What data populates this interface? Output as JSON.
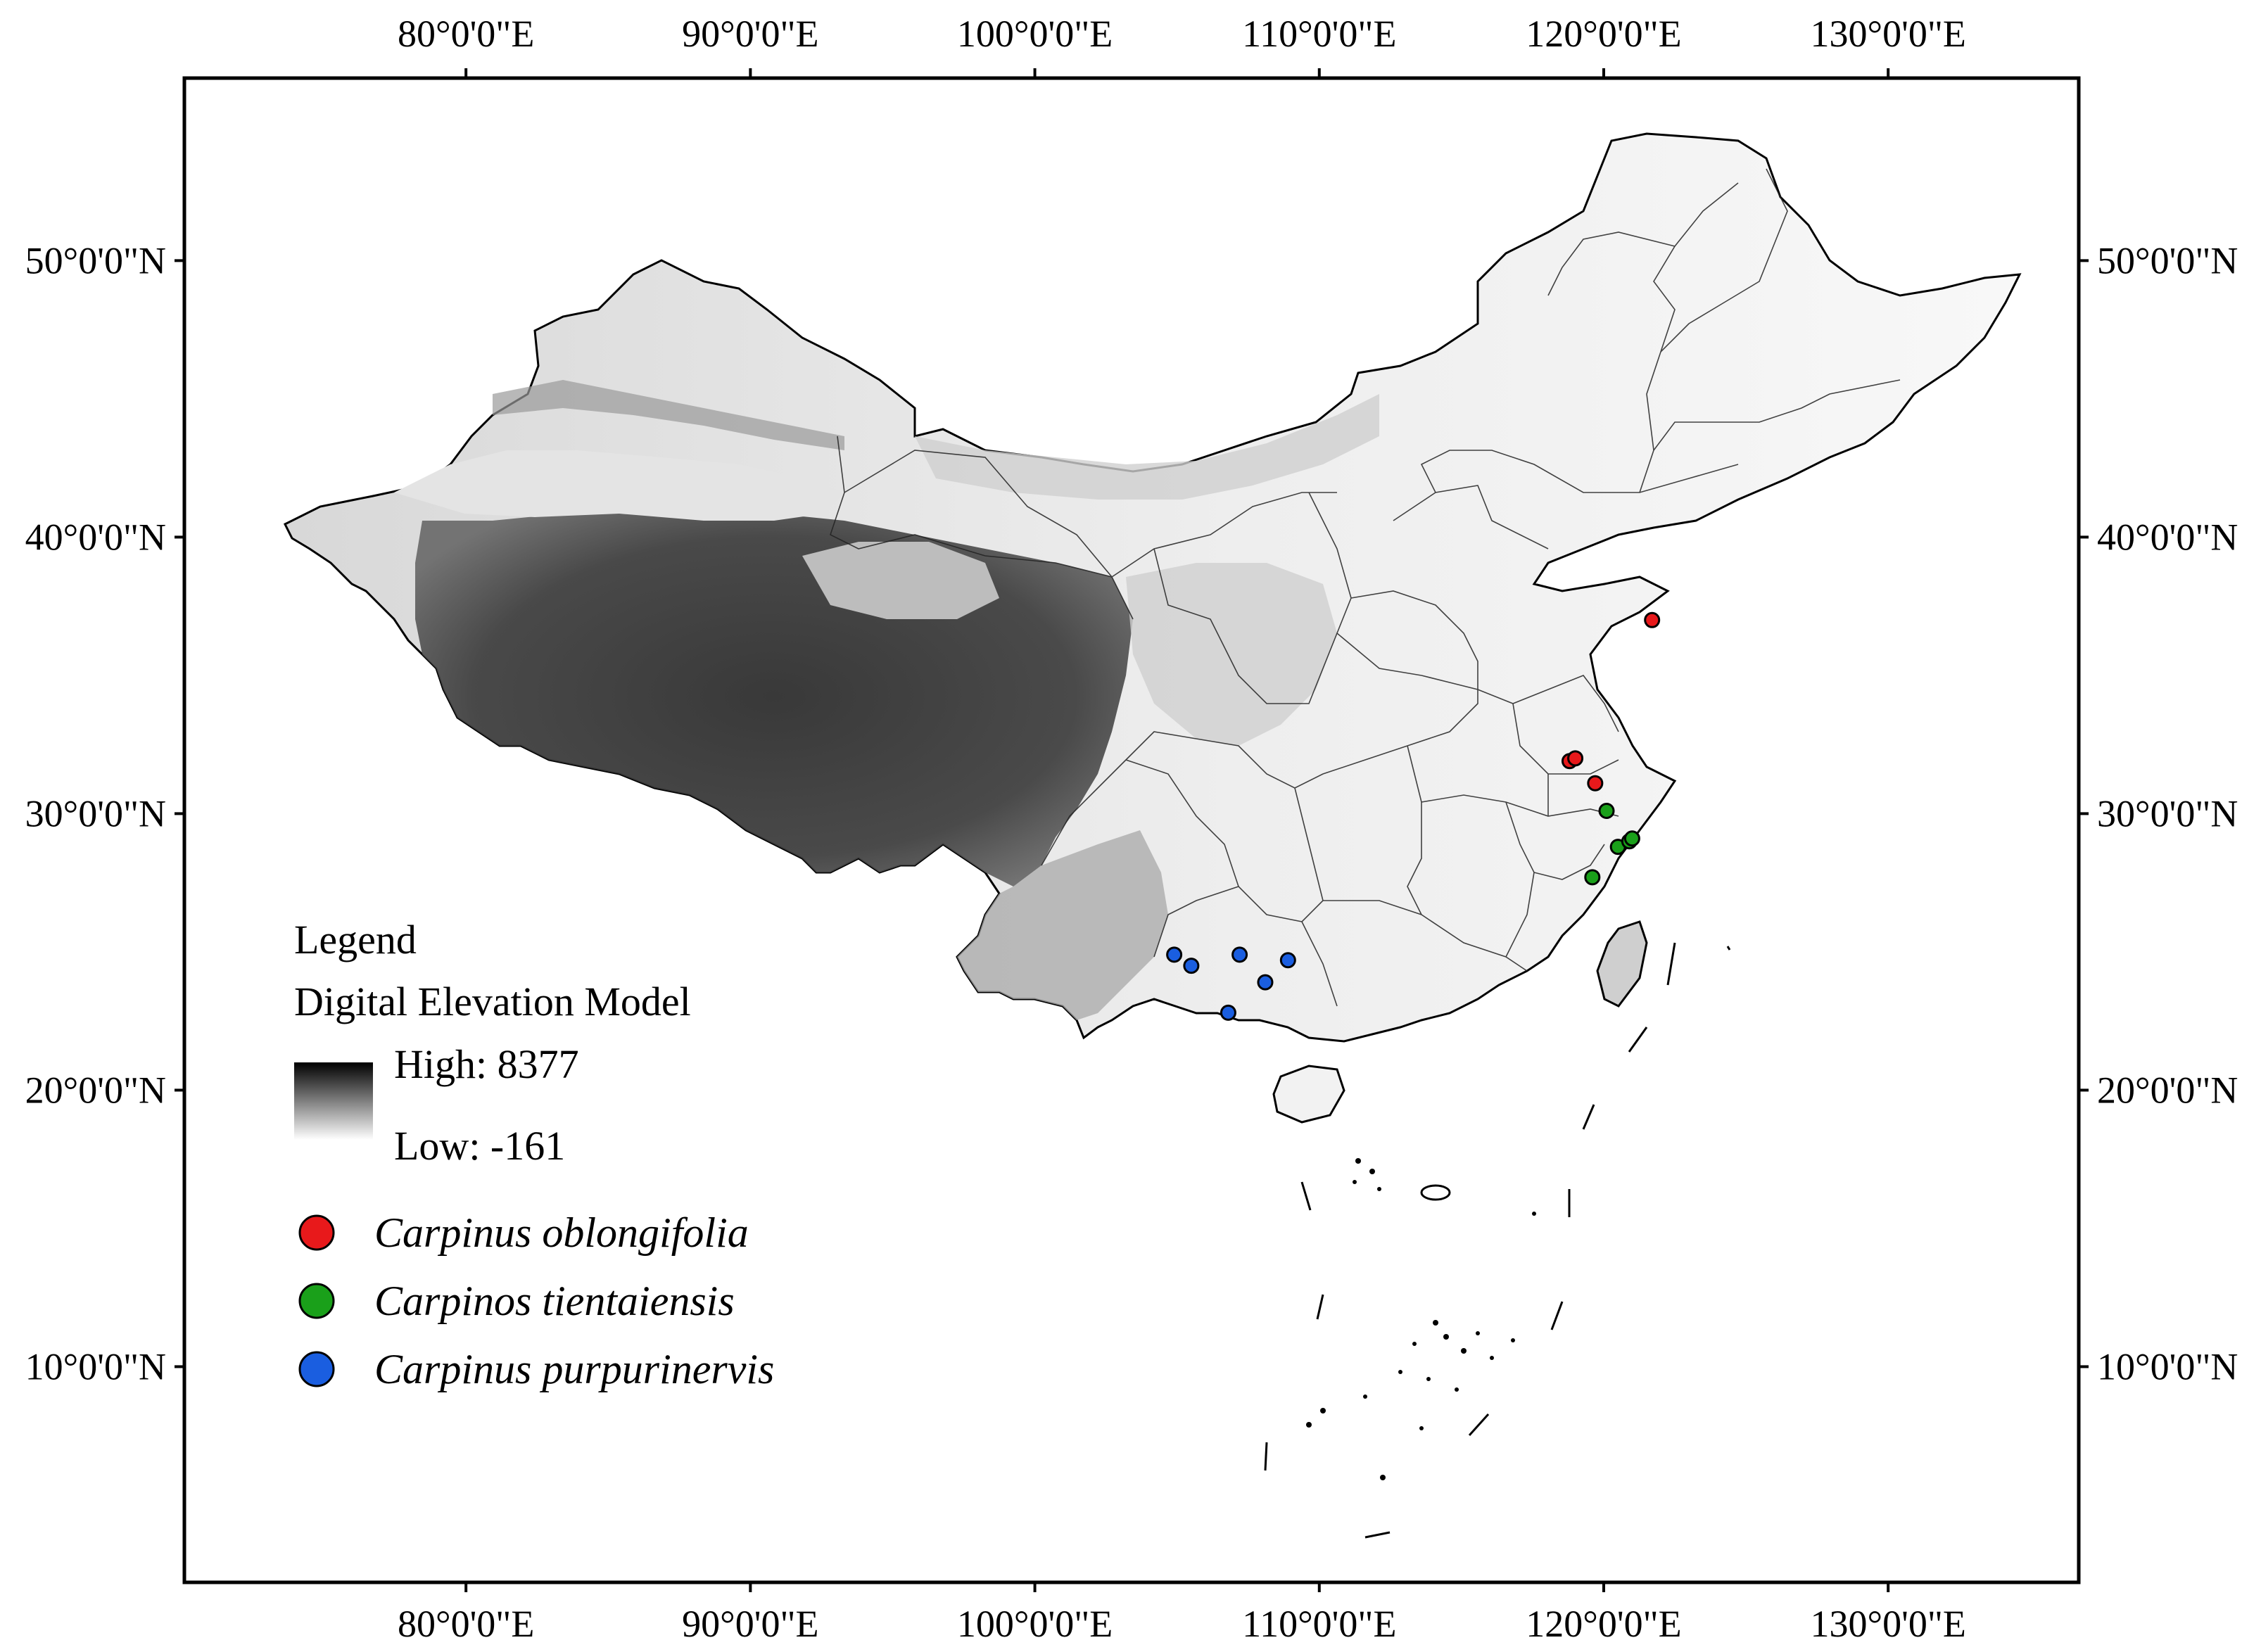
{
  "map": {
    "x_ticks": [
      {
        "lon": 80,
        "label": "80°0'0\"E"
      },
      {
        "lon": 90,
        "label": "90°0'0\"E"
      },
      {
        "lon": 100,
        "label": "100°0'0\"E"
      },
      {
        "lon": 110,
        "label": "110°0'0\"E"
      },
      {
        "lon": 120,
        "label": "120°0'0\"E"
      },
      {
        "lon": 130,
        "label": "130°0'0\"E"
      }
    ],
    "y_ticks": [
      {
        "lat": 50,
        "label": "50°0'0\"N"
      },
      {
        "lat": 40,
        "label": "40°0'0\"N"
      },
      {
        "lat": 30,
        "label": "30°0'0\"N"
      },
      {
        "lat": 20,
        "label": "20°0'0\"N"
      },
      {
        "lat": 10,
        "label": "10°0'0\"N"
      }
    ],
    "extent": {
      "lon_min": 70.1,
      "lon_max": 136.7,
      "lat_min": 2.2,
      "lat_max": 56.6
    }
  },
  "legend": {
    "title": "Legend",
    "dem_title": "Digital Elevation Model",
    "dem_high": "High: 8377",
    "dem_low": "Low: -161",
    "items": [
      {
        "label": "Carpinus oblongifolia",
        "color": "#e8191b"
      },
      {
        "label": "Carpinos tientaiensis",
        "color": "#1aa01a"
      },
      {
        "label": "Carpinus purpurinervis",
        "color": "#1a5ee0"
      }
    ]
  },
  "points": [
    {
      "species": "Carpinus oblongifolia",
      "color": "#e8191b",
      "lon": 121.7,
      "lat": 37.0
    },
    {
      "species": "Carpinus oblongifolia",
      "color": "#e8191b",
      "lon": 118.8,
      "lat": 31.9
    },
    {
      "species": "Carpinus oblongifolia",
      "color": "#e8191b",
      "lon": 119.0,
      "lat": 32.0
    },
    {
      "species": "Carpinus oblongifolia",
      "color": "#e8191b",
      "lon": 119.7,
      "lat": 31.1
    },
    {
      "species": "Carpinos tientaiensis",
      "color": "#1aa01a",
      "lon": 120.1,
      "lat": 30.1
    },
    {
      "species": "Carpinos tientaiensis",
      "color": "#1aa01a",
      "lon": 120.5,
      "lat": 28.8
    },
    {
      "species": "Carpinos tientaiensis",
      "color": "#1aa01a",
      "lon": 120.9,
      "lat": 29.0
    },
    {
      "species": "Carpinos tientaiensis",
      "color": "#1aa01a",
      "lon": 121.0,
      "lat": 29.1
    },
    {
      "species": "Carpinos tientaiensis",
      "color": "#1aa01a",
      "lon": 119.6,
      "lat": 27.7
    },
    {
      "species": "Carpinus purpurinervis",
      "color": "#1a5ee0",
      "lon": 104.9,
      "lat": 24.9
    },
    {
      "species": "Carpinus purpurinervis",
      "color": "#1a5ee0",
      "lon": 105.5,
      "lat": 24.5
    },
    {
      "species": "Carpinus purpurinervis",
      "color": "#1a5ee0",
      "lon": 107.2,
      "lat": 24.9
    },
    {
      "species": "Carpinus purpurinervis",
      "color": "#1a5ee0",
      "lon": 108.9,
      "lat": 24.7
    },
    {
      "species": "Carpinus purpurinervis",
      "color": "#1a5ee0",
      "lon": 108.1,
      "lat": 23.9
    },
    {
      "species": "Carpinus purpurinervis",
      "color": "#1a5ee0",
      "lon": 106.8,
      "lat": 22.8
    }
  ]
}
